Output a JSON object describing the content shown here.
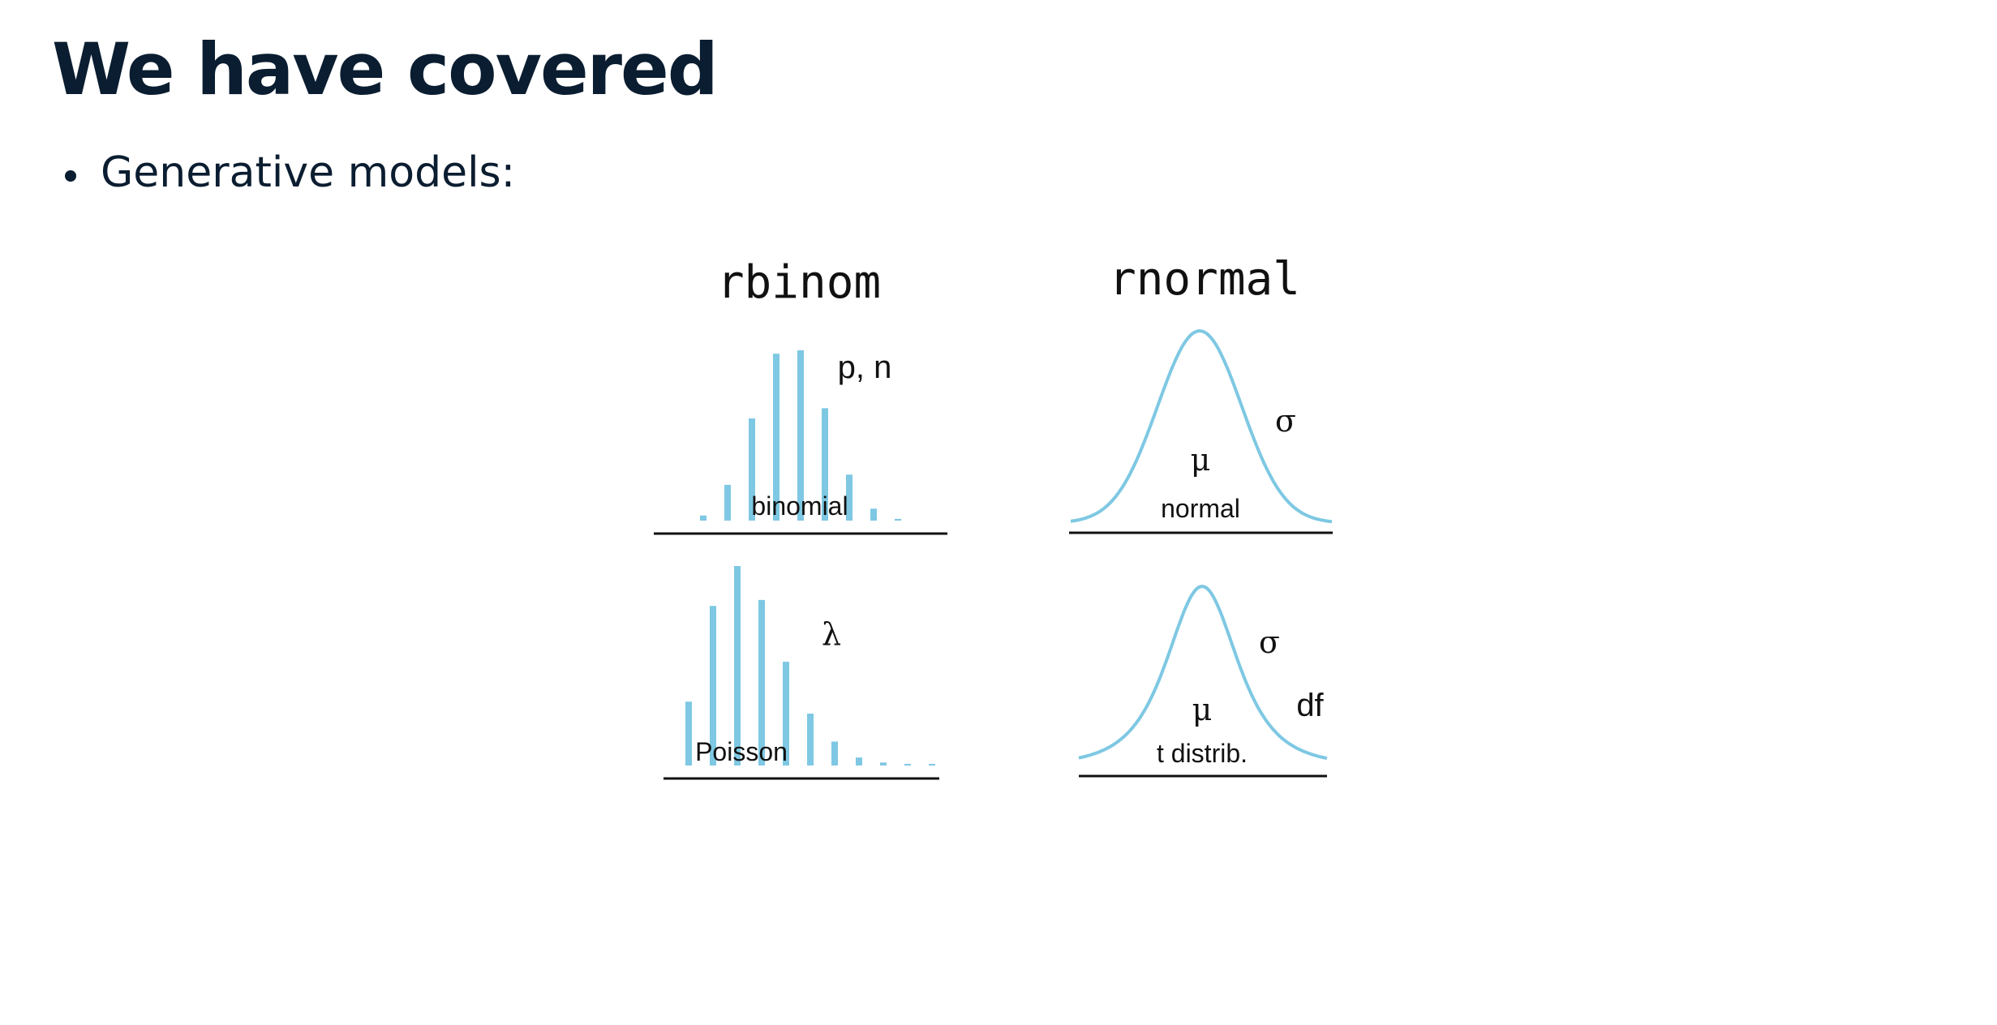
{
  "slide": {
    "title": "We have covered",
    "bullets": [
      "Generative models:"
    ]
  },
  "figure": {
    "functions": [
      "rbinom",
      "rnormal"
    ],
    "panels": {
      "binomial": {
        "name": "binomial",
        "params": [
          "p, n"
        ],
        "color": "#7ec8e3",
        "bars": [
          0.03,
          0.21,
          0.6,
          0.98,
          1.0,
          0.66,
          0.27,
          0.07,
          0.01
        ]
      },
      "poisson": {
        "name": "Poisson",
        "params": [
          "λ"
        ],
        "color": "#7ec8e3",
        "bars": [
          0.32,
          0.8,
          1.0,
          0.83,
          0.52,
          0.26,
          0.12,
          0.04,
          0.015,
          0.005,
          0.002
        ]
      },
      "normal": {
        "name": "normal",
        "params": [
          "σ",
          "μ"
        ],
        "color": "#7ec8e3"
      },
      "t": {
        "name": "t distrib.",
        "params": [
          "σ",
          "μ",
          "df"
        ],
        "color": "#7ec8e3"
      }
    }
  }
}
